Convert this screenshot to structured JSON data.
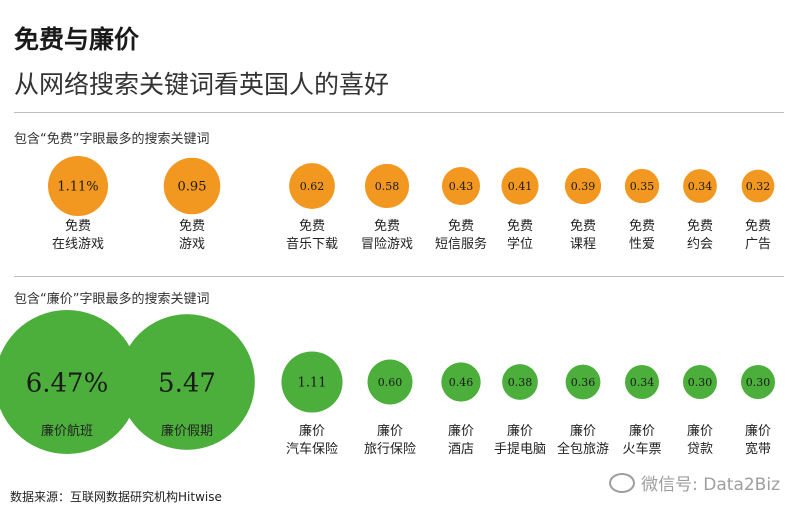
{
  "header": {
    "title": "免费与廉价",
    "subtitle": "从网络搜索关键词看英国人的喜好"
  },
  "footer": {
    "source": "数据来源：互联网数据研究机构Hitwise",
    "watermark": "微信号: Data2Biz"
  },
  "colors": {
    "free": "#f2971f",
    "cheap": "#4caf3b"
  },
  "chart_data": [
    {
      "type": "bubble",
      "title": "包含“免费”字眼最多的搜索关键词",
      "unit": "%",
      "categories": [
        [
          "免费",
          "在线游戏"
        ],
        [
          "免费",
          "游戏"
        ],
        [
          "免费",
          "音乐下载"
        ],
        [
          "免费",
          "冒险游戏"
        ],
        [
          "免费",
          "短信服务"
        ],
        [
          "免费",
          "学位"
        ],
        [
          "免费",
          "课程"
        ],
        [
          "免费",
          "性爱"
        ],
        [
          "免费",
          "约会"
        ],
        [
          "免费",
          "广告"
        ]
      ],
      "values": [
        1.11,
        0.95,
        0.62,
        0.58,
        0.43,
        0.41,
        0.39,
        0.35,
        0.34,
        0.32
      ],
      "value_labels": [
        "1.11%",
        "0.95",
        "0.62",
        "0.58",
        "0.43",
        "0.41",
        "0.39",
        "0.35",
        "0.34",
        "0.32"
      ]
    },
    {
      "type": "bubble",
      "title": "包含“廉价”字眼最多的搜索关键词",
      "unit": "%",
      "categories": [
        [
          "廉价航班"
        ],
        [
          "廉价假期"
        ],
        [
          "廉价",
          "汽车保险"
        ],
        [
          "廉价",
          "旅行保险"
        ],
        [
          "廉价",
          "酒店"
        ],
        [
          "廉价",
          "手提电脑"
        ],
        [
          "廉价",
          "全包旅游"
        ],
        [
          "廉价",
          "火车票"
        ],
        [
          "廉价",
          "贷款"
        ],
        [
          "廉价",
          "宽带"
        ]
      ],
      "values": [
        6.47,
        5.47,
        1.11,
        0.6,
        0.46,
        0.38,
        0.36,
        0.34,
        0.3,
        0.3
      ],
      "value_labels": [
        "6.47%",
        "5.47",
        "1.11",
        "0.60",
        "0.46",
        "0.38",
        "0.36",
        "0.34",
        "0.30",
        "0.30"
      ]
    }
  ]
}
